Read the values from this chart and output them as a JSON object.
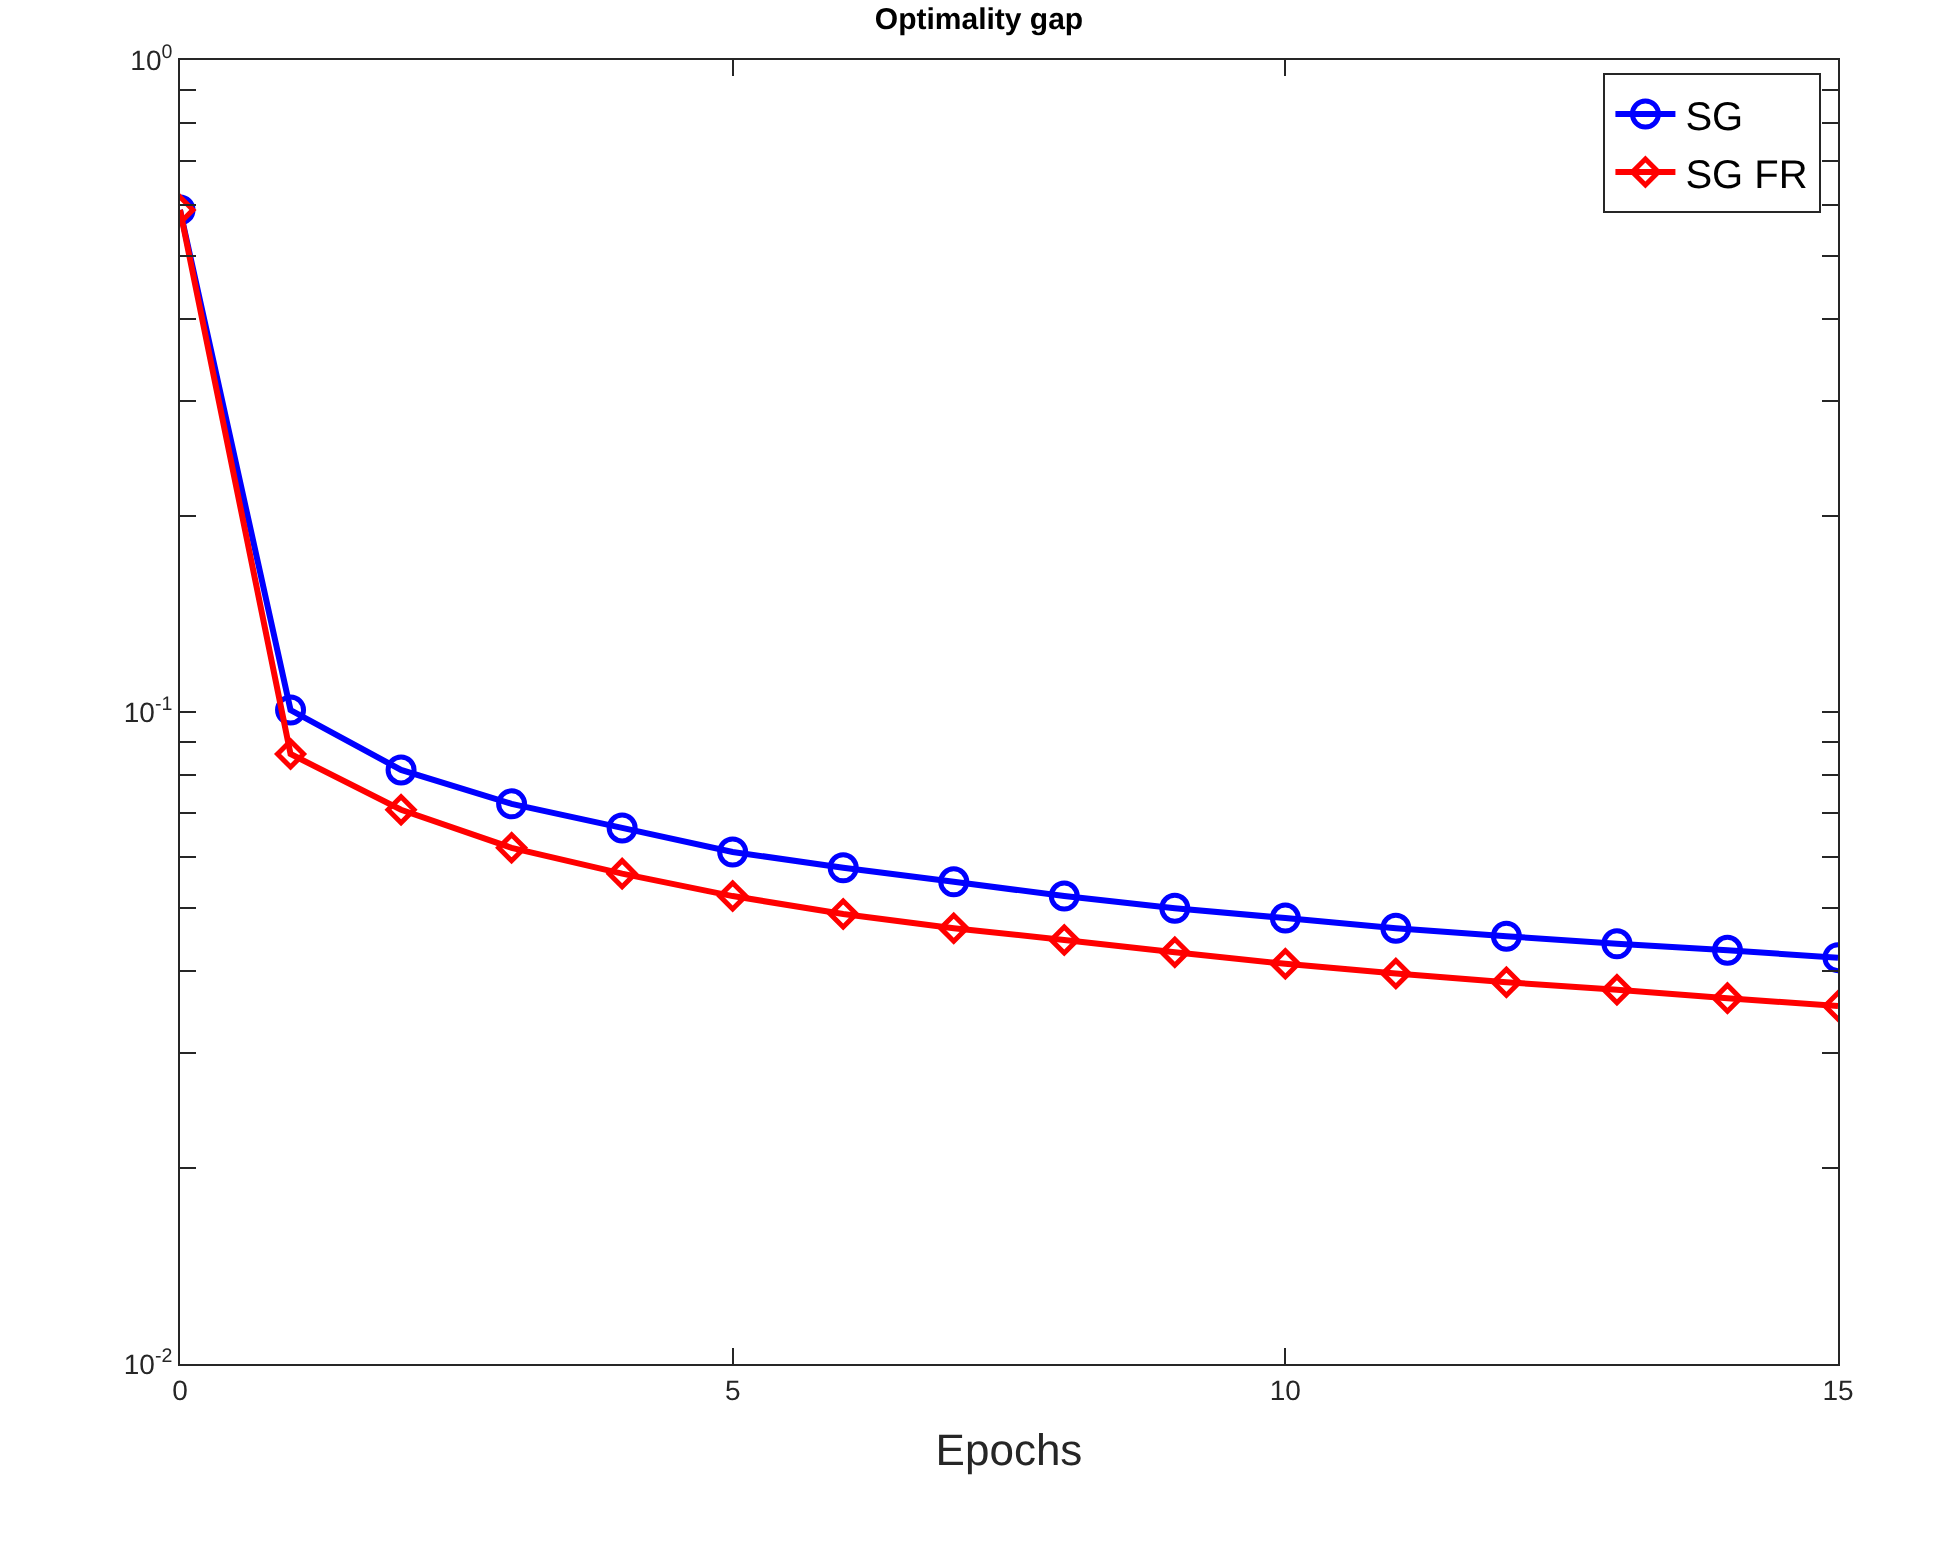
{
  "chart_data": {
    "type": "line",
    "title": "Optimality gap",
    "xlabel": "Epochs",
    "x": [
      0,
      1,
      2,
      3,
      4,
      5,
      6,
      7,
      8,
      9,
      10,
      11,
      12,
      13,
      14,
      15
    ],
    "series": [
      {
        "name": "SG",
        "color": "#0000ff",
        "marker": "circle",
        "values": [
          0.589,
          0.1007,
          0.0815,
          0.0723,
          0.0664,
          0.061,
          0.0577,
          0.0549,
          0.0522,
          0.05,
          0.0483,
          0.0466,
          0.0453,
          0.0441,
          0.0431,
          0.042
        ]
      },
      {
        "name": "SG FR",
        "color": "#ff0000",
        "marker": "diamond",
        "values": [
          0.589,
          0.0862,
          0.0708,
          0.0619,
          0.0565,
          0.0522,
          0.049,
          0.0466,
          0.0447,
          0.0428,
          0.0411,
          0.0397,
          0.0385,
          0.0375,
          0.0364,
          0.0354
        ]
      }
    ],
    "log": "y",
    "xlim": [
      0,
      15
    ],
    "xticks": [
      0,
      5,
      10,
      15
    ],
    "ylim": [
      0.01,
      1
    ],
    "yticks": [
      {
        "value": 0.01,
        "label": "10$^{-2}$"
      },
      {
        "value": 0.02,
        "label": null
      },
      {
        "value": 0.03,
        "label": null
      },
      {
        "value": 0.04,
        "label": null
      },
      {
        "value": 0.05,
        "label": null
      },
      {
        "value": 0.06,
        "label": null
      },
      {
        "value": 0.07,
        "label": null
      },
      {
        "value": 0.08,
        "label": null
      },
      {
        "value": 0.09,
        "label": null
      },
      {
        "value": 0.1,
        "label": "10$^{-1}$"
      },
      {
        "value": 0.2,
        "label": null
      },
      {
        "value": 0.3,
        "label": null
      },
      {
        "value": 0.4,
        "label": null
      },
      {
        "value": 0.5,
        "label": null
      },
      {
        "value": 0.6,
        "label": null
      },
      {
        "value": 0.7,
        "label": null
      },
      {
        "value": 0.8,
        "label": null
      },
      {
        "value": 0.9,
        "label": null
      },
      {
        "value": 1,
        "label": "10$^{0}$"
      }
    ],
    "legend": "top right",
    "line_style": "solid"
  }
}
